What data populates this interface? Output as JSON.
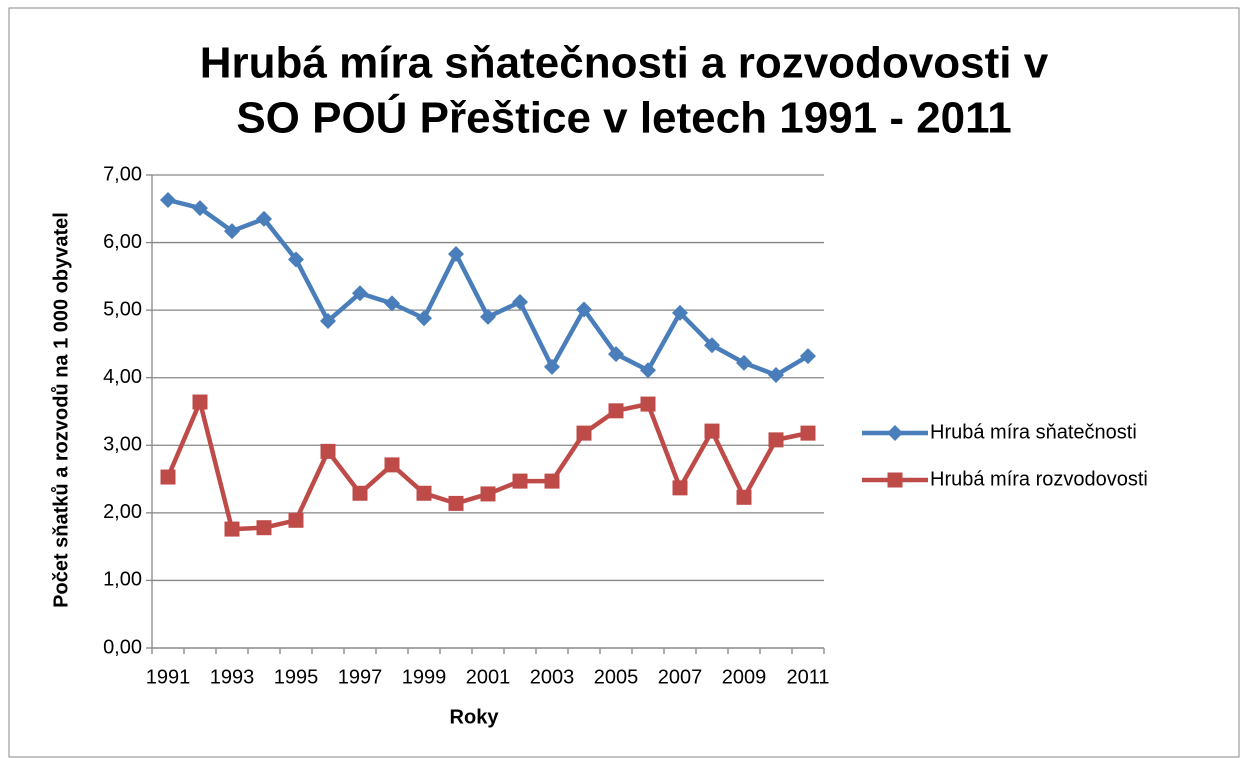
{
  "chart_data": {
    "type": "line",
    "title": [
      "Hrubá míra sňatečnosti a rozvodovosti v",
      "SO POÚ Přeštice v letech 1991 - 2011"
    ],
    "x_label": "Roky",
    "y_label": "Počet sňatků a rozvodů na 1 000 obyvatel",
    "categories": [
      "1991",
      null,
      "1993",
      null,
      "1995",
      null,
      "1997",
      null,
      "1999",
      null,
      "2001",
      null,
      "2003",
      null,
      "2005",
      null,
      "2007",
      null,
      "2009",
      null,
      "2011"
    ],
    "series": [
      {
        "name": "Hrubá míra sňatečnosti",
        "color": "#4a7ebb",
        "marker": "diamond",
        "values": [
          6.63,
          6.51,
          6.17,
          6.35,
          5.75,
          4.84,
          5.25,
          5.1,
          4.88,
          5.83,
          4.9,
          5.12,
          4.16,
          5.01,
          4.35,
          4.11,
          4.96,
          4.48,
          4.22,
          4.04,
          4.32
        ]
      },
      {
        "name": "Hrubá míra rozvodovosti",
        "color": "#be4b48",
        "marker": "square",
        "values": [
          2.53,
          3.64,
          1.76,
          1.78,
          1.89,
          2.91,
          2.29,
          2.71,
          2.29,
          2.14,
          2.28,
          2.47,
          2.47,
          3.18,
          3.51,
          3.61,
          2.37,
          3.21,
          2.23,
          3.08,
          3.18
        ]
      }
    ],
    "ylim": [
      0,
      7
    ],
    "yticks": [
      {
        "value": 0,
        "label": "0,00"
      },
      {
        "value": 1,
        "label": "1,00"
      },
      {
        "value": 2,
        "label": "2,00"
      },
      {
        "value": 3,
        "label": "3,00"
      },
      {
        "value": 4,
        "label": "4,00"
      },
      {
        "value": 5,
        "label": "5,00"
      },
      {
        "value": 6,
        "label": "6,00"
      },
      {
        "value": 7,
        "label": "7,00"
      }
    ],
    "grid": true,
    "legend": "right"
  }
}
